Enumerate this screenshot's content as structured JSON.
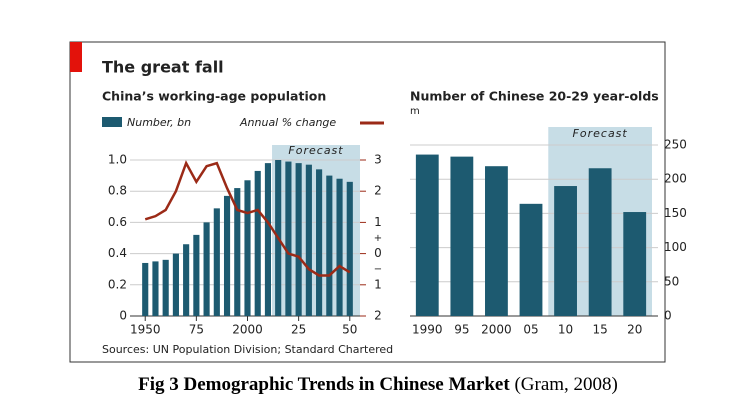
{
  "title": "The great fall",
  "source": "Sources: UN Population Division; Standard Chartered",
  "caption": {
    "bold": "Fig 3 Demographic Trends in Chinese Market",
    "rest": "(Gram, 2008)"
  },
  "chart_data": [
    {
      "type": "combo",
      "title": "China’s working-age population",
      "x": [
        1950,
        1955,
        1960,
        1965,
        1970,
        1975,
        1980,
        1985,
        1990,
        1995,
        2000,
        2005,
        2010,
        2015,
        2020,
        2025,
        2030,
        2035,
        2040,
        2045,
        2050
      ],
      "series": [
        {
          "name": "Number, bn",
          "color": "#1d5a70",
          "values": [
            0.34,
            0.35,
            0.36,
            0.4,
            0.46,
            0.52,
            0.6,
            0.69,
            0.77,
            0.82,
            0.87,
            0.93,
            0.98,
            1.0,
            0.99,
            0.98,
            0.97,
            0.94,
            0.9,
            0.88,
            0.86
          ]
        },
        {
          "name": "Annual % change",
          "color": "#9b2a17",
          "axis": "y2",
          "values": [
            1.1,
            1.2,
            1.4,
            2.0,
            2.9,
            2.3,
            2.8,
            2.9,
            2.1,
            1.4,
            1.3,
            1.4,
            1.0,
            0.5,
            0.0,
            -0.1,
            -0.5,
            -0.7,
            -0.7,
            -0.4,
            -0.6
          ]
        }
      ],
      "forecast": {
        "label": "Forecast",
        "start": 2012
      },
      "xlim": [
        1945,
        2055
      ],
      "xticks": [
        1950,
        {
          "value": 1975,
          "label": "75"
        },
        2000,
        {
          "value": 2025,
          "label": "25"
        },
        {
          "value": 2050,
          "label": "50"
        }
      ],
      "ylim": [
        0,
        1.0
      ],
      "yticks": [
        0,
        0.2,
        0.4,
        0.6,
        0.8,
        {
          "value": 1.0,
          "label": "1.0"
        }
      ],
      "y2lim": [
        -2,
        3
      ],
      "y2ticks": [
        {
          "value": -2,
          "label": "2"
        },
        {
          "value": -1,
          "label": "1"
        },
        0,
        1,
        2,
        3
      ],
      "y2_signs": [
        "+",
        "−"
      ],
      "grid": true
    },
    {
      "type": "bar",
      "title": "Number of Chinese 20-29 year-olds",
      "unit": "m",
      "categories": [
        "1990",
        "95",
        "2000",
        "05",
        "10",
        "15",
        "20"
      ],
      "values": [
        236,
        233,
        219,
        164,
        190,
        216,
        152
      ],
      "color": "#1d5a70",
      "forecast": {
        "label": "Forecast",
        "start": 4
      },
      "ylim": [
        0,
        250
      ],
      "yticks": [
        0,
        50,
        100,
        150,
        200,
        250
      ],
      "grid": true
    }
  ]
}
